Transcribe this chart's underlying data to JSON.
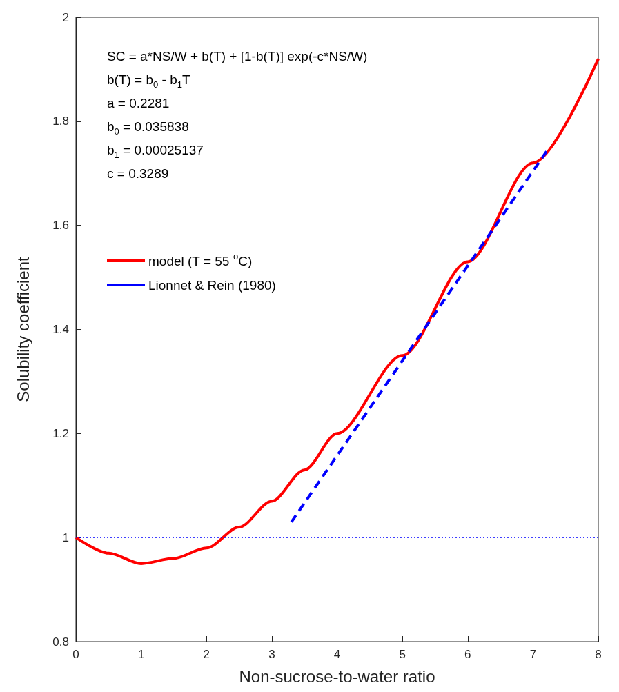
{
  "chart_data": {
    "type": "line",
    "xlabel": "Non-sucrose-to-water ratio",
    "ylabel": "Solubility coefficient",
    "xlim": [
      0,
      8
    ],
    "xticks": [
      0,
      1,
      2,
      3,
      4,
      5,
      6,
      7,
      8
    ],
    "ylim": [
      0.8,
      2
    ],
    "yticks": [
      0.8,
      1,
      1.2,
      1.4,
      1.6,
      1.8,
      2
    ],
    "grid": false,
    "legend": "top left",
    "marker": "none",
    "annotations": [
      "SC = a*NS/W + b(T) + [1-b(T)] exp(-c*NS/W)",
      "b(T) = b$_{0}$ - b$_{1}$T",
      "a = 0.2281",
      "b$_{0}$ = 0.035838",
      "b$_{1}$ = 0.00025137",
      "c = 0.3289"
    ],
    "ref_lines": [
      {
        "axis": "y",
        "value": 1,
        "label": null,
        "color": "#0000ff",
        "line_style": "dotted"
      }
    ],
    "series": [
      {
        "name": "model (T = 55 $^{o}$C)",
        "color": "#ff0000",
        "line_style": "solid",
        "x": [
          0,
          0.5,
          1,
          1.5,
          2,
          2.5,
          3,
          3.5,
          4,
          5,
          6,
          7,
          8
        ],
        "values": [
          1,
          0.97,
          0.95,
          0.96,
          0.98,
          1.02,
          1.07,
          1.13,
          1.2,
          1.35,
          1.53,
          1.72,
          1.92
        ]
      },
      {
        "name": "Lionnet & Rein (1980)",
        "color": "#0000ff",
        "line_style": "dashed",
        "x": [
          3.3,
          7.25
        ],
        "values": [
          1.03,
          1.75
        ]
      }
    ]
  }
}
